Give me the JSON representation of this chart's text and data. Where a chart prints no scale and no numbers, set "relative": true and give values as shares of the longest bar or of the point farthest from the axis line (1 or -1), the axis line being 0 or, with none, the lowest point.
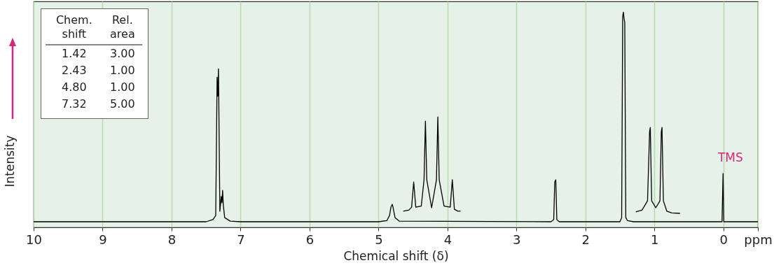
{
  "chart_data": {
    "type": "line",
    "relative": true,
    "xlabel": "Chemical shift (δ)",
    "ylabel": "Intensity",
    "xlim": [
      10,
      -0.5
    ],
    "xticks": [
      10,
      9,
      8,
      7,
      6,
      5,
      4,
      3,
      2,
      1,
      0,
      {
        "value": -0.5,
        "label": "ppm"
      }
    ],
    "grid": "x",
    "series": [
      {
        "color": "#000000",
        "x": [
          10,
          7.5,
          7.4,
          7.36,
          7.34,
          7.33,
          7.32,
          7.3,
          7.28,
          7.27,
          7.26,
          7.25,
          7.23,
          7.15,
          7.0,
          5.0,
          4.88,
          4.84,
          4.82,
          4.8,
          4.79,
          4.76,
          4.7,
          2.5,
          2.46,
          2.445,
          2.43,
          2.415,
          2.38,
          1.5,
          1.475,
          1.46,
          1.45,
          1.44,
          1.43,
          1.415,
          1.39,
          1.3,
          0.02,
          0.005,
          -0.005,
          -0.5
        ],
        "values": [
          0.026,
          0.026,
          0.036,
          0.055,
          0.698,
          0.61,
          0.737,
          0.075,
          0.143,
          0.114,
          0.172,
          0.104,
          0.045,
          0.029,
          0.026,
          0.026,
          0.031,
          0.055,
          0.094,
          0.107,
          0.094,
          0.045,
          0.029,
          0.026,
          0.036,
          0.211,
          0.221,
          0.036,
          0.026,
          0.026,
          0.045,
          0.98,
          1.0,
          0.971,
          0.951,
          0.045,
          0.031,
          0.026,
          0.026,
          0.25,
          0.026,
          0.026
        ]
      },
      {
        "color": "#000000",
        "x": [
          4.64,
          4.56,
          4.52,
          4.49,
          4.46,
          4.38,
          4.34,
          4.32,
          4.3,
          4.23,
          4.16,
          4.14,
          4.12,
          4.05,
          3.96,
          3.93,
          3.9,
          3.85,
          3.81
        ],
        "values": [
          0.075,
          0.08,
          0.094,
          0.211,
          0.094,
          0.099,
          0.221,
          0.494,
          0.221,
          0.091,
          0.221,
          0.513,
          0.221,
          0.099,
          0.094,
          0.221,
          0.084,
          0.075,
          0.075
        ]
      },
      {
        "color": "#000000",
        "x": [
          1.27,
          1.18,
          1.1,
          1.07,
          1.06,
          1.04,
          0.98,
          0.92,
          0.9,
          0.89,
          0.87,
          0.82,
          0.75,
          0.63
        ],
        "values": [
          0.072,
          0.08,
          0.123,
          0.445,
          0.464,
          0.123,
          0.091,
          0.123,
          0.445,
          0.464,
          0.123,
          0.075,
          0.067,
          0.065
        ]
      }
    ],
    "annotations": [
      "Chem. shift",
      "Rel. area",
      "1.42",
      "3.00",
      "2.43",
      "1.00",
      "4.80",
      "1.00",
      "7.32",
      "5.00",
      {
        "text": "TMS",
        "x": 0,
        "y": 0.25
      }
    ]
  }
}
